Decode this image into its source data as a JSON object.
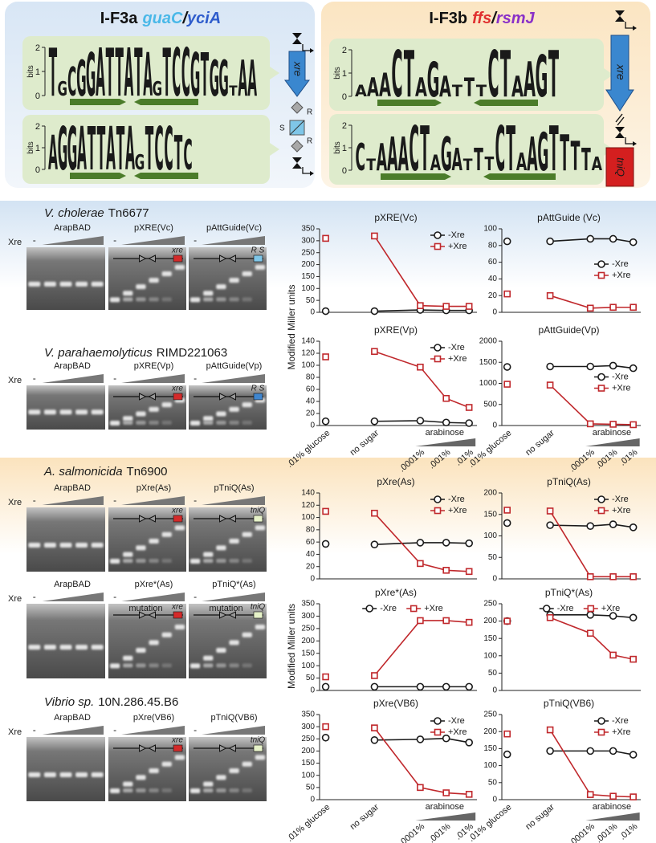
{
  "chart_data": [
    {
      "type": "line",
      "title": "pXRE(Vc)",
      "ylim": [
        0,
        350
      ],
      "yticks": [
        0,
        50,
        100,
        150,
        200,
        250,
        300,
        350
      ],
      "legend": "upper right",
      "categories": [
        null,
        null,
        null,
        null,
        null
      ],
      "series": [
        {
          "name": "-Xre",
          "color": "#1a1a1a",
          "marker": "circle",
          "values": [
            5,
            5,
            10,
            8,
            8
          ]
        },
        {
          "name": "+Xre",
          "color": "#c0282c",
          "marker": "square",
          "values": [
            310,
            320,
            28,
            25,
            25
          ]
        }
      ]
    },
    {
      "type": "line",
      "title": "pAttGuide (Vc)",
      "ylim": [
        0,
        100
      ],
      "yticks": [
        0,
        20,
        40,
        60,
        80,
        100
      ],
      "legend": "center right",
      "categories": [
        null,
        null,
        null,
        null,
        null
      ],
      "series": [
        {
          "name": "-Xre",
          "color": "#1a1a1a",
          "marker": "circle",
          "values": [
            85,
            85,
            88,
            88,
            84
          ]
        },
        {
          "name": "+Xre",
          "color": "#c0282c",
          "marker": "square",
          "values": [
            22,
            20,
            5,
            6,
            6
          ]
        }
      ]
    },
    {
      "type": "line",
      "title": "pXRE(Vp)",
      "ylim": [
        0,
        140
      ],
      "yticks": [
        0,
        20,
        40,
        60,
        80,
        100,
        120,
        140
      ],
      "legend": "upper right",
      "categories": [
        ".01% glucose",
        "no sugar",
        ".0001%",
        ".001%",
        ".01%"
      ],
      "group_label": "arabinose",
      "series": [
        {
          "name": "-Xre",
          "color": "#1a1a1a",
          "marker": "circle",
          "values": [
            7,
            7,
            8,
            5,
            4
          ]
        },
        {
          "name": "+Xre",
          "color": "#c0282c",
          "marker": "square",
          "values": [
            114,
            123,
            97,
            45,
            30
          ]
        }
      ]
    },
    {
      "type": "line",
      "title": "pAttGuide(Vp)",
      "ylim": [
        0,
        2000
      ],
      "yticks": [
        0,
        500,
        1000,
        1500,
        2000
      ],
      "legend": "center right",
      "categories": [
        ".01% glucose",
        "no sugar",
        ".0001%",
        ".001%",
        ".01%"
      ],
      "group_label": "arabinose",
      "series": [
        {
          "name": "-Xre",
          "color": "#1a1a1a",
          "marker": "circle",
          "values": [
            1390,
            1400,
            1400,
            1420,
            1360
          ]
        },
        {
          "name": "+Xre",
          "color": "#c0282c",
          "marker": "square",
          "values": [
            980,
            960,
            40,
            30,
            20
          ]
        }
      ]
    },
    {
      "type": "line",
      "title": "pXre(As)",
      "ylim": [
        0,
        140
      ],
      "yticks": [
        0,
        20,
        40,
        60,
        80,
        100,
        120,
        140
      ],
      "legend": "upper right",
      "categories": [
        null,
        null,
        null,
        null,
        null
      ],
      "series": [
        {
          "name": "-Xre",
          "color": "#1a1a1a",
          "marker": "circle",
          "values": [
            57,
            56,
            59,
            59,
            58
          ]
        },
        {
          "name": "+Xre",
          "color": "#c0282c",
          "marker": "square",
          "values": [
            110,
            107,
            25,
            14,
            12
          ]
        }
      ]
    },
    {
      "type": "line",
      "title": "pTniQ(As)",
      "ylim": [
        0,
        200
      ],
      "yticks": [
        0,
        50,
        100,
        150,
        200
      ],
      "legend": "upper right",
      "categories": [
        null,
        null,
        null,
        null,
        null
      ],
      "series": [
        {
          "name": "-Xre",
          "color": "#1a1a1a",
          "marker": "circle",
          "values": [
            130,
            125,
            123,
            127,
            120
          ]
        },
        {
          "name": "+Xre",
          "color": "#c0282c",
          "marker": "square",
          "values": [
            160,
            158,
            5,
            5,
            5
          ]
        }
      ]
    },
    {
      "type": "line",
      "title": "pXre*(As)",
      "ylim": [
        0,
        350
      ],
      "yticks": [
        0,
        50,
        100,
        150,
        200,
        250,
        300,
        350
      ],
      "legend": "upper center",
      "categories": [
        null,
        null,
        null,
        null,
        null
      ],
      "series": [
        {
          "name": "-Xre",
          "color": "#1a1a1a",
          "marker": "circle",
          "values": [
            15,
            15,
            15,
            15,
            15
          ]
        },
        {
          "name": "+Xre",
          "color": "#c0282c",
          "marker": "square",
          "values": [
            55,
            60,
            282,
            282,
            275
          ]
        }
      ]
    },
    {
      "type": "line",
      "title": "pTniQ*(As)",
      "ylim": [
        0,
        250
      ],
      "yticks": [
        0,
        50,
        100,
        150,
        200,
        250
      ],
      "legend": "upper center",
      "categories": [
        null,
        null,
        null,
        null,
        null
      ],
      "series": [
        {
          "name": "-Xre",
          "color": "#1a1a1a",
          "marker": "circle",
          "values": [
            200,
            218,
            218,
            215,
            210
          ]
        },
        {
          "name": "+Xre",
          "color": "#c0282c",
          "marker": "square",
          "values": [
            200,
            210,
            165,
            102,
            90
          ]
        }
      ]
    },
    {
      "type": "line",
      "title": "pXre(VB6)",
      "ylim": [
        0,
        350
      ],
      "yticks": [
        0,
        50,
        100,
        150,
        200,
        250,
        300,
        350
      ],
      "legend": "upper right",
      "categories": [
        ".01% glucose",
        "no sugar",
        ".0001%",
        ".001%",
        ".01%"
      ],
      "group_label": "arabinose",
      "series": [
        {
          "name": "-Xre",
          "color": "#1a1a1a",
          "marker": "circle",
          "values": [
            255,
            245,
            248,
            252,
            235
          ]
        },
        {
          "name": "+Xre",
          "color": "#c0282c",
          "marker": "square",
          "values": [
            300,
            295,
            50,
            28,
            22
          ]
        }
      ]
    },
    {
      "type": "line",
      "title": "pTniQ(VB6)",
      "ylim": [
        0,
        250
      ],
      "yticks": [
        0,
        50,
        100,
        150,
        200,
        250
      ],
      "legend": "upper right",
      "categories": [
        ".01% glucose",
        "no sugar",
        ".0001%",
        ".001%",
        ".01%"
      ],
      "group_label": "arabinose",
      "series": [
        {
          "name": "-Xre",
          "color": "#1a1a1a",
          "marker": "circle",
          "values": [
            133,
            143,
            143,
            143,
            132
          ]
        },
        {
          "name": "+Xre",
          "color": "#c0282c",
          "marker": "square",
          "values": [
            193,
            205,
            15,
            10,
            8
          ]
        }
      ]
    }
  ],
  "letter_colors": {
    "A": "#d7191c",
    "C": "#1515c8",
    "G": "#f2a100",
    "T": "#138a13"
  },
  "panels": [
    {
      "title_parts": [
        {
          "text": "I-F3a",
          "color": "#111111",
          "italic": false
        },
        {
          "text": "guaC",
          "color": "#4ab8e8",
          "italic": true
        },
        {
          "text": "/",
          "color": "#111111",
          "italic": true
        },
        {
          "text": "yciA",
          "color": "#2e5ccc",
          "italic": true
        }
      ],
      "bits_label": "bits",
      "ylim": [
        0,
        2
      ],
      "yticks": [
        0,
        1,
        2
      ],
      "logos": [
        {
          "letters": [
            "T",
            "G",
            "C",
            "G",
            "G",
            "A",
            "T",
            "T",
            "A",
            "T",
            "A",
            "G",
            "T",
            "C",
            "C",
            "G",
            "T",
            "G",
            "G",
            "T",
            "A",
            "A"
          ],
          "heights": [
            2,
            0.6,
            1.2,
            1.5,
            1.8,
            2,
            2,
            2,
            2,
            2,
            1.8,
            0.6,
            2,
            2,
            2,
            1.8,
            1.8,
            1.5,
            1.5,
            0.4,
            1.5,
            1.5
          ]
        },
        {
          "letters": [
            "A",
            "G",
            "G",
            "A",
            "T",
            "T",
            "A",
            "T",
            "A",
            "G",
            "T",
            "C",
            "C",
            "T",
            "C"
          ],
          "heights": [
            1.6,
            2,
            2,
            2,
            2,
            2,
            2,
            2,
            2,
            0.7,
            2,
            2,
            2,
            1.6,
            1.4
          ]
        }
      ],
      "diagram": {
        "gene": "xre",
        "site_labels": [
          "R",
          "S",
          "R"
        ]
      }
    },
    {
      "title_parts": [
        {
          "text": "I-F3b",
          "color": "#111111",
          "italic": false
        },
        {
          "text": "ffs",
          "color": "#e03030",
          "italic": true
        },
        {
          "text": "/",
          "color": "#111111",
          "italic": true
        },
        {
          "text": "rsmJ",
          "color": "#8a30c8",
          "italic": true
        }
      ],
      "bits_label": "bits",
      "ylim": [
        0,
        2
      ],
      "yticks": [
        0,
        1,
        2
      ],
      "logos": [
        {
          "letters": [
            "A",
            "A",
            "A",
            "C",
            "T",
            "A",
            "G",
            "A",
            "T",
            "T",
            "T",
            "C",
            "T",
            "A",
            "A",
            "G",
            "T"
          ],
          "heights": [
            0.5,
            0.8,
            1,
            2,
            2,
            0.8,
            1.5,
            0.9,
            0.5,
            0.8,
            0.5,
            2,
            2,
            0.9,
            1.5,
            1.8,
            2
          ]
        },
        {
          "letters": [
            "C",
            "T",
            "A",
            "A",
            "A",
            "C",
            "T",
            "A",
            "G",
            "A",
            "T",
            "T",
            "T",
            "C",
            "T",
            "A",
            "A",
            "G",
            "T",
            "T",
            "T",
            "T",
            "A"
          ],
          "heights": [
            1.2,
            0.5,
            1.2,
            1.5,
            1.5,
            2,
            2,
            0.7,
            1.5,
            1,
            0.5,
            1,
            0.6,
            2,
            2,
            0.8,
            1.5,
            1.7,
            2,
            1.6,
            1.3,
            1,
            0.6
          ]
        }
      ],
      "diagram": {
        "gene": "xre",
        "second_gene": "tniQ"
      }
    }
  ],
  "sections": [
    {
      "ylabel": "Modified Miller units",
      "rows": [
        {
          "species": {
            "italic": "V. cholerae",
            "plain": "Tn6677"
          },
          "gel": {
            "xre_label": "Xre",
            "minus": "-",
            "headers": [
              "ArapBAD",
              "pXRE(Vc)",
              "pAttGuide(Vc)"
            ],
            "constructs": [
              {
                "gene": "xre",
                "color": "#d42a2a"
              },
              {
                "gene": "R S",
                "color": "#7fc6e8"
              }
            ]
          }
        },
        {
          "species": {
            "italic": "V. parahaemolyticus",
            "plain": "RIMD221063"
          },
          "gel": {
            "xre_label": "Xre",
            "minus": "-",
            "headers": [
              "ArapBAD",
              "pXRE(Vp)",
              "pAttGuide(Vp)"
            ],
            "constructs": [
              {
                "gene": "xre",
                "color": "#d42a2a"
              },
              {
                "gene": "R S",
                "color": "#3f86cf"
              }
            ]
          }
        }
      ]
    },
    {
      "ylabel": "Modified Miller units",
      "rows": [
        {
          "species": {
            "italic": "A. salmonicida",
            "plain": "Tn6900"
          },
          "gel": {
            "xre_label": "Xre",
            "minus": "-",
            "headers": [
              "ArapBAD",
              "pXre(As)",
              "pTniQ(As)"
            ],
            "constructs": [
              {
                "gene": "xre",
                "color": "#d42a2a"
              },
              {
                "gene": "tniQ",
                "color": "#e6f2c8"
              }
            ]
          }
        },
        {
          "gel": {
            "xre_label": "Xre",
            "minus": "-",
            "headers": [
              "ArapBAD",
              "pXre*(As)",
              "pTniQ*(As)"
            ],
            "mutation_labels": [
              "mutation",
              "mutation"
            ],
            "constructs": [
              {
                "gene": "xre",
                "color": "#d42a2a"
              },
              {
                "gene": "tniQ",
                "color": "#e6f2c8"
              }
            ]
          }
        },
        {
          "species": {
            "italic": "Vibrio sp.",
            "plain": "10N.286.45.B6"
          },
          "gel": {
            "xre_label": "Xre",
            "minus": "-",
            "headers": [
              "ArapBAD",
              "pXre(VB6)",
              "pTniQ(VB6)"
            ],
            "constructs": [
              {
                "gene": "xre",
                "color": "#d42a2a"
              },
              {
                "gene": "tniQ",
                "color": "#e6f2c8"
              }
            ]
          }
        }
      ]
    }
  ]
}
